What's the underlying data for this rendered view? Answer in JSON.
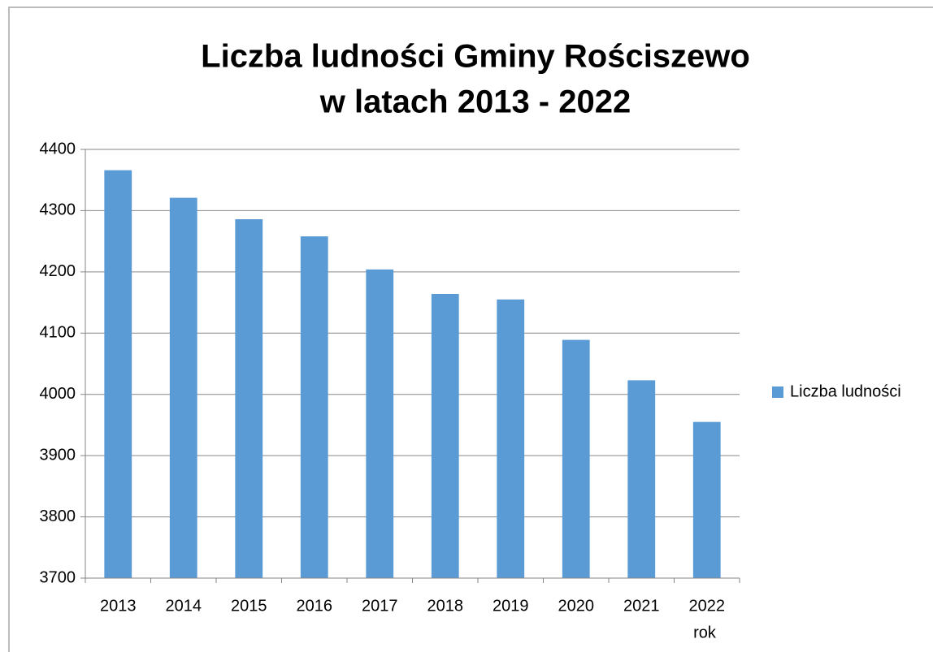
{
  "chart_data": {
    "type": "bar",
    "title": [
      "Liczba ludności Gminy Rościszewo",
      "w latach 2013 - 2022"
    ],
    "x_label": "rok",
    "categories": [
      "2013",
      "2014",
      "2015",
      "2016",
      "2017",
      "2018",
      "2019",
      "2020",
      "2021",
      "2022"
    ],
    "series": [
      {
        "name": "Liczba ludności",
        "color": "#5b9bd5",
        "values": [
          4366,
          4321,
          4286,
          4258,
          4204,
          4164,
          4155,
          4089,
          4023,
          3955
        ]
      }
    ],
    "ylim": [
      3700,
      4400
    ],
    "yticks": [
      3700,
      3800,
      3900,
      4000,
      4100,
      4200,
      4300,
      4400
    ],
    "grid": true,
    "legend": "right"
  }
}
